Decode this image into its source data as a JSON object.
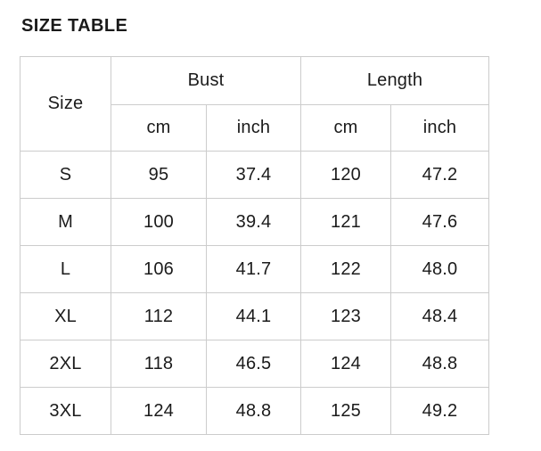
{
  "page": {
    "title": "SIZE TABLE"
  },
  "colors": {
    "background": "#ffffff",
    "border": "#cccccc",
    "text": "#1b1b1b"
  },
  "table": {
    "header": {
      "size": "Size",
      "groups": [
        {
          "label": "Bust",
          "sub": [
            "cm",
            "inch"
          ]
        },
        {
          "label": "Length",
          "sub": [
            "cm",
            "inch"
          ]
        }
      ]
    },
    "rows": [
      {
        "size": "S",
        "bust_cm": "95",
        "bust_inch": "37.4",
        "length_cm": "120",
        "length_inch": "47.2"
      },
      {
        "size": "M",
        "bust_cm": "100",
        "bust_inch": "39.4",
        "length_cm": "121",
        "length_inch": "47.6"
      },
      {
        "size": "L",
        "bust_cm": "106",
        "bust_inch": "41.7",
        "length_cm": "122",
        "length_inch": "48.0"
      },
      {
        "size": "XL",
        "bust_cm": "112",
        "bust_inch": "44.1",
        "length_cm": "123",
        "length_inch": "48.4"
      },
      {
        "size": "2XL",
        "bust_cm": "118",
        "bust_inch": "46.5",
        "length_cm": "124",
        "length_inch": "48.8"
      },
      {
        "size": "3XL",
        "bust_cm": "124",
        "bust_inch": "48.8",
        "length_cm": "125",
        "length_inch": "49.2"
      }
    ]
  },
  "chart_data": {
    "type": "table",
    "title": "SIZE TABLE",
    "columns": [
      "Size",
      "Bust cm",
      "Bust inch",
      "Length cm",
      "Length inch"
    ],
    "rows": [
      [
        "S",
        95,
        37.4,
        120,
        47.2
      ],
      [
        "M",
        100,
        39.4,
        121,
        47.6
      ],
      [
        "L",
        106,
        41.7,
        122,
        48.0
      ],
      [
        "XL",
        112,
        44.1,
        123,
        48.4
      ],
      [
        "2XL",
        118,
        46.5,
        124,
        48.8
      ],
      [
        "3XL",
        124,
        48.8,
        125,
        49.2
      ]
    ]
  }
}
